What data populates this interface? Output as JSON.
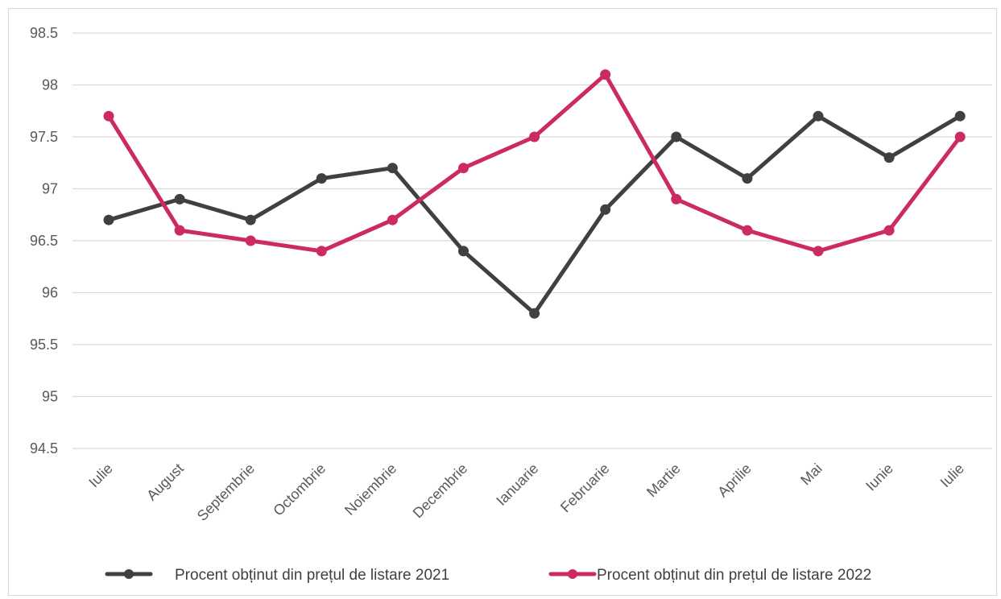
{
  "chart_data": {
    "type": "line",
    "title": "",
    "xlabel": "",
    "ylabel": "",
    "categories": [
      "Iulie",
      "August",
      "Septembrie",
      "Octombrie",
      "Noiembrie",
      "Decembrie",
      "Ianuarie",
      "Februarie",
      "Martie",
      "Aprilie",
      "Mai",
      "Iunie",
      "Iulie"
    ],
    "ylim": [
      94.5,
      98.5
    ],
    "yticks": [
      "94.5",
      "95",
      "95.5",
      "96",
      "96.5",
      "97",
      "97.5",
      "98",
      "98.5"
    ],
    "grid": true,
    "legend_position": "bottom",
    "series": [
      {
        "name": "Procent obținut din prețul de listare 2021",
        "color": "#404040",
        "values": [
          96.7,
          96.9,
          96.7,
          97.1,
          97.2,
          96.4,
          95.8,
          96.8,
          97.5,
          97.1,
          97.7,
          97.3,
          97.7
        ]
      },
      {
        "name": "Procent obținut din prețul de listare 2022",
        "color": "#cc2a62",
        "values": [
          97.7,
          96.6,
          96.5,
          96.4,
          96.7,
          97.2,
          97.5,
          98.1,
          96.9,
          96.6,
          96.4,
          96.6,
          97.5
        ]
      }
    ]
  }
}
